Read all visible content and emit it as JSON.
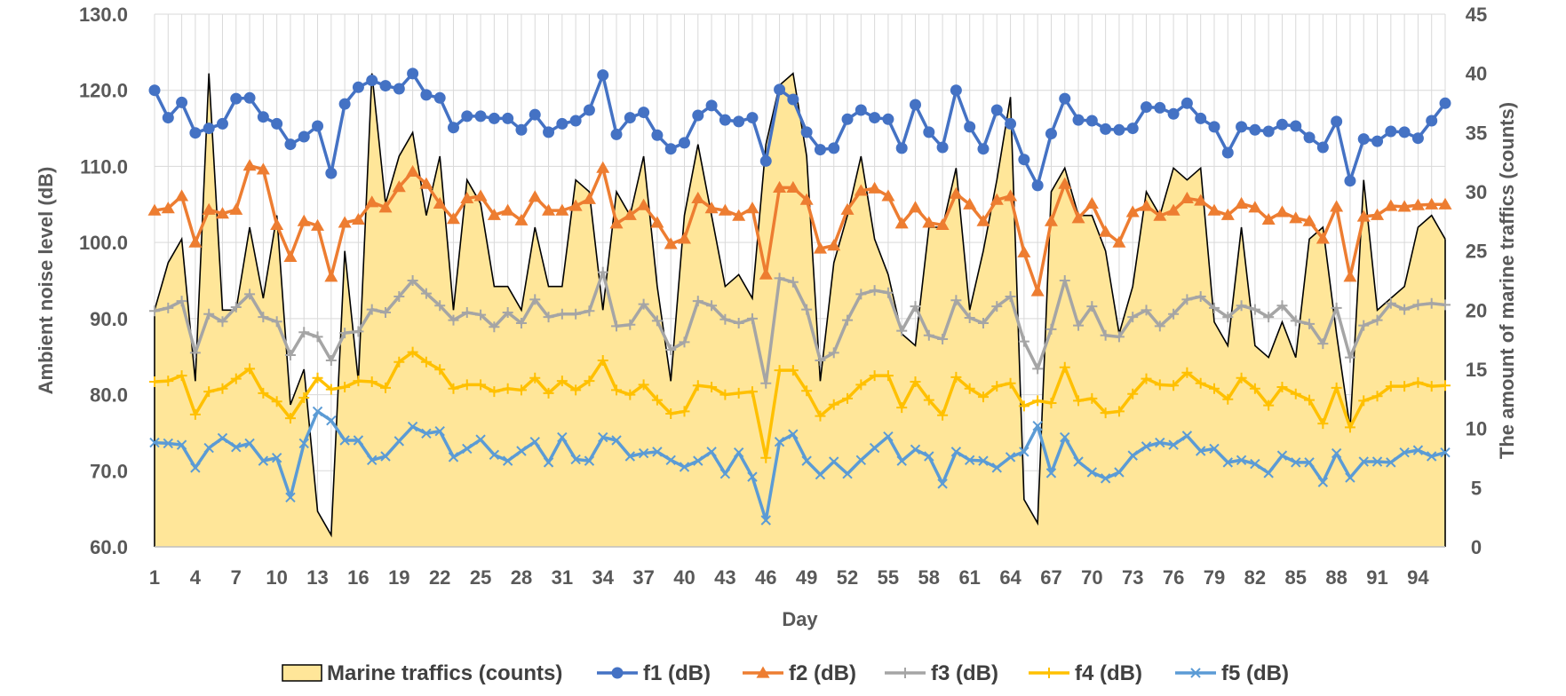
{
  "chart_data": {
    "type": "line",
    "title": "",
    "xlabel": "Day",
    "ylabel": "Ambient noise level (dB)",
    "y2label": "The amount of marine traffics (counts)",
    "ylim": [
      60,
      130
    ],
    "y2lim": [
      0,
      45
    ],
    "xlim": [
      1,
      96
    ],
    "y_ticks": [
      "60.0",
      "70.0",
      "80.0",
      "90.0",
      "100.0",
      "110.0",
      "120.0",
      "130.0"
    ],
    "y2_ticks": [
      "0",
      "5",
      "10",
      "15",
      "20",
      "25",
      "30",
      "35",
      "40",
      "45"
    ],
    "x_ticks": [
      "1",
      "4",
      "7",
      "10",
      "13",
      "16",
      "19",
      "22",
      "25",
      "28",
      "31",
      "34",
      "37",
      "40",
      "43",
      "46",
      "49",
      "52",
      "55",
      "58",
      "61",
      "64",
      "67",
      "70",
      "73",
      "76",
      "79",
      "82",
      "85",
      "88",
      "91",
      "94"
    ],
    "legend_position": "bottom",
    "days": [
      1,
      2,
      3,
      4,
      5,
      6,
      7,
      8,
      9,
      10,
      11,
      12,
      13,
      14,
      15,
      16,
      17,
      18,
      19,
      20,
      21,
      22,
      23,
      24,
      25,
      26,
      27,
      28,
      29,
      30,
      31,
      32,
      33,
      34,
      35,
      36,
      37,
      38,
      39,
      40,
      41,
      42,
      43,
      44,
      45,
      46,
      47,
      48,
      49,
      50,
      51,
      52,
      53,
      54,
      55,
      56,
      57,
      58,
      59,
      60,
      61,
      62,
      63,
      64,
      65,
      66,
      67,
      68,
      69,
      70,
      71,
      72,
      73,
      74,
      75,
      76,
      77,
      78,
      79,
      80,
      81,
      82,
      83,
      84,
      85,
      86,
      87,
      88,
      89,
      90,
      91,
      92,
      93,
      94,
      95,
      96
    ],
    "series": [
      {
        "name": "Marine traffics (counts)",
        "axis": "right",
        "style": "area",
        "color": "#FFE699",
        "edge": "#000000",
        "values": [
          20,
          24,
          26,
          14,
          40,
          20,
          20,
          27,
          21,
          28,
          12,
          15,
          3,
          1,
          25,
          14,
          40,
          29,
          33,
          35,
          28,
          33,
          20,
          31,
          29,
          22,
          22,
          20,
          27,
          22,
          22,
          31,
          30,
          20,
          30,
          28,
          33,
          22,
          14,
          28,
          34,
          28,
          22,
          23,
          21,
          34,
          39,
          40,
          33,
          14,
          24,
          28,
          33,
          26,
          23,
          18,
          17,
          27,
          27,
          32,
          20,
          25,
          31,
          38,
          4,
          2,
          30,
          32,
          28,
          28,
          25,
          18,
          22,
          30,
          28,
          32,
          31,
          32,
          19,
          17,
          27,
          17,
          16,
          19,
          16,
          26,
          27,
          18,
          10,
          31,
          20,
          21,
          22,
          27,
          28,
          26
        ]
      },
      {
        "name": "f1 (dB)",
        "axis": "left",
        "style": "line",
        "color": "#4472C4",
        "marker": "circle",
        "values": [
          120.0,
          116.4,
          118.4,
          114.4,
          115.0,
          115.6,
          118.9,
          119.0,
          116.5,
          115.6,
          112.9,
          113.9,
          115.3,
          109.1,
          118.2,
          120.4,
          121.3,
          120.6,
          120.2,
          122.2,
          119.4,
          119.0,
          115.1,
          116.6,
          116.6,
          116.3,
          116.3,
          114.8,
          116.8,
          114.5,
          115.6,
          116.0,
          117.4,
          122.0,
          114.2,
          116.4,
          117.1,
          114.1,
          112.3,
          113.1,
          116.7,
          118.0,
          116.1,
          115.9,
          116.4,
          110.7,
          120.1,
          118.8,
          114.5,
          112.2,
          112.4,
          116.2,
          117.4,
          116.4,
          116.2,
          112.4,
          118.1,
          114.5,
          112.5,
          120.0,
          115.2,
          112.3,
          117.4,
          115.6,
          110.9,
          107.5,
          114.3,
          118.9,
          116.1,
          116.0,
          114.9,
          114.8,
          115.0,
          117.8,
          117.7,
          116.9,
          118.3,
          116.3,
          115.2,
          111.8,
          115.2,
          114.8,
          114.6,
          115.5,
          115.3,
          113.8,
          112.5,
          115.9,
          108.1,
          113.6,
          113.3,
          114.6,
          114.5,
          113.7,
          116.0,
          118.3
        ]
      },
      {
        "name": "f2 (dB)",
        "axis": "left",
        "style": "line",
        "color": "#ED7D31",
        "marker": "triangle",
        "values": [
          104.2,
          104.5,
          106.1,
          100.0,
          104.3,
          103.8,
          104.3,
          110.1,
          109.6,
          102.3,
          98.1,
          102.8,
          102.2,
          95.5,
          102.6,
          103.0,
          105.3,
          104.6,
          107.3,
          109.3,
          107.7,
          105.1,
          103.1,
          105.8,
          106.1,
          103.6,
          104.2,
          102.9,
          106.0,
          104.2,
          104.2,
          104.8,
          105.7,
          109.8,
          102.5,
          103.6,
          104.9,
          102.6,
          99.8,
          100.5,
          105.8,
          104.5,
          104.2,
          103.5,
          104.5,
          95.8,
          107.2,
          107.2,
          105.6,
          99.2,
          99.6,
          104.3,
          106.8,
          107.1,
          106.1,
          102.5,
          104.6,
          102.6,
          102.3,
          106.4,
          105.0,
          102.8,
          105.6,
          106.1,
          98.7,
          93.6,
          102.8,
          107.7,
          103.2,
          105.1,
          101.4,
          100.0,
          104.0,
          104.8,
          103.5,
          104.2,
          105.8,
          105.5,
          104.2,
          103.6,
          105.1,
          104.6,
          103.0,
          104.0,
          103.2,
          102.8,
          100.5,
          104.7,
          95.5,
          103.4,
          103.6,
          104.8,
          104.7,
          104.9,
          105.0,
          105.0
        ]
      },
      {
        "name": "f3 (dB)",
        "axis": "left",
        "style": "line",
        "color": "#A5A5A5",
        "marker": "plus",
        "values": [
          91.0,
          91.4,
          92.3,
          85.5,
          90.6,
          89.6,
          91.5,
          93.2,
          90.2,
          89.6,
          85.2,
          88.2,
          87.6,
          84.5,
          88.1,
          88.3,
          91.2,
          90.8,
          92.9,
          95.0,
          93.3,
          91.7,
          89.8,
          90.8,
          90.5,
          88.9,
          90.8,
          89.4,
          92.5,
          90.2,
          90.6,
          90.6,
          91.0,
          96.1,
          89.0,
          89.2,
          91.9,
          89.7,
          85.9,
          86.9,
          92.3,
          91.7,
          89.9,
          89.4,
          90.0,
          81.5,
          95.3,
          94.8,
          91.2,
          84.5,
          85.5,
          89.8,
          93.2,
          93.7,
          93.4,
          88.4,
          91.6,
          87.8,
          87.3,
          92.4,
          90.1,
          89.4,
          91.6,
          92.9,
          87.0,
          83.4,
          88.6,
          95.0,
          89.1,
          91.6,
          87.8,
          87.6,
          90.2,
          91.1,
          89.0,
          90.6,
          92.5,
          92.9,
          91.4,
          90.2,
          91.7,
          91.2,
          90.2,
          91.7,
          89.7,
          89.3,
          86.7,
          91.4,
          84.9,
          89.1,
          89.8,
          92.0,
          91.2,
          91.8,
          92.0,
          91.8
        ]
      },
      {
        "name": "f4 (dB)",
        "axis": "left",
        "style": "line",
        "color": "#FFC000",
        "marker": "plus",
        "values": [
          81.7,
          81.8,
          82.5,
          77.4,
          80.4,
          80.8,
          82.1,
          83.4,
          80.2,
          79.1,
          76.9,
          79.6,
          82.2,
          80.7,
          81.0,
          81.8,
          81.7,
          80.9,
          84.3,
          85.6,
          84.3,
          83.3,
          80.8,
          81.3,
          81.3,
          80.4,
          80.8,
          80.6,
          82.2,
          80.2,
          81.8,
          80.6,
          81.8,
          84.5,
          80.6,
          80.0,
          81.3,
          79.3,
          77.5,
          77.8,
          81.2,
          81.0,
          80.0,
          80.2,
          80.4,
          71.7,
          83.2,
          83.2,
          80.5,
          77.2,
          78.7,
          79.5,
          81.3,
          82.5,
          82.5,
          78.3,
          81.7,
          79.3,
          77.3,
          82.3,
          80.8,
          79.7,
          81.1,
          81.5,
          78.5,
          79.2,
          78.9,
          83.6,
          79.2,
          79.5,
          77.6,
          77.8,
          80.1,
          82.1,
          81.3,
          81.2,
          82.9,
          81.5,
          80.8,
          79.4,
          82.2,
          80.8,
          78.6,
          81.0,
          80.1,
          79.3,
          76.2,
          80.9,
          75.7,
          79.2,
          79.8,
          81.1,
          81.1,
          81.6,
          81.1,
          81.2
        ]
      },
      {
        "name": "f5 (dB)",
        "axis": "left",
        "style": "line",
        "color": "#5B9BD5",
        "marker": "x",
        "values": [
          73.7,
          73.6,
          73.4,
          70.4,
          73.0,
          74.3,
          73.1,
          73.6,
          71.3,
          71.7,
          66.5,
          73.6,
          77.8,
          76.6,
          74.0,
          74.0,
          71.4,
          71.9,
          73.9,
          75.8,
          74.9,
          75.2,
          71.8,
          72.9,
          74.1,
          72.1,
          71.3,
          72.6,
          73.8,
          71.1,
          74.4,
          71.5,
          71.3,
          74.4,
          74.0,
          71.9,
          72.3,
          72.5,
          71.4,
          70.5,
          71.3,
          72.5,
          69.6,
          72.4,
          69.2,
          63.5,
          73.8,
          74.8,
          71.3,
          69.5,
          71.2,
          69.6,
          71.4,
          73.0,
          74.5,
          71.3,
          72.8,
          71.9,
          68.3,
          72.5,
          71.4,
          71.3,
          70.4,
          71.8,
          72.5,
          75.9,
          69.7,
          74.4,
          71.2,
          69.8,
          69.0,
          69.8,
          72.0,
          73.2,
          73.7,
          73.4,
          74.6,
          72.6,
          72.9,
          71.1,
          71.4,
          70.9,
          69.7,
          72.0,
          71.1,
          71.1,
          68.5,
          72.3,
          69.1,
          71.2,
          71.2,
          71.1,
          72.4,
          72.7,
          71.9,
          72.4
        ]
      }
    ]
  }
}
